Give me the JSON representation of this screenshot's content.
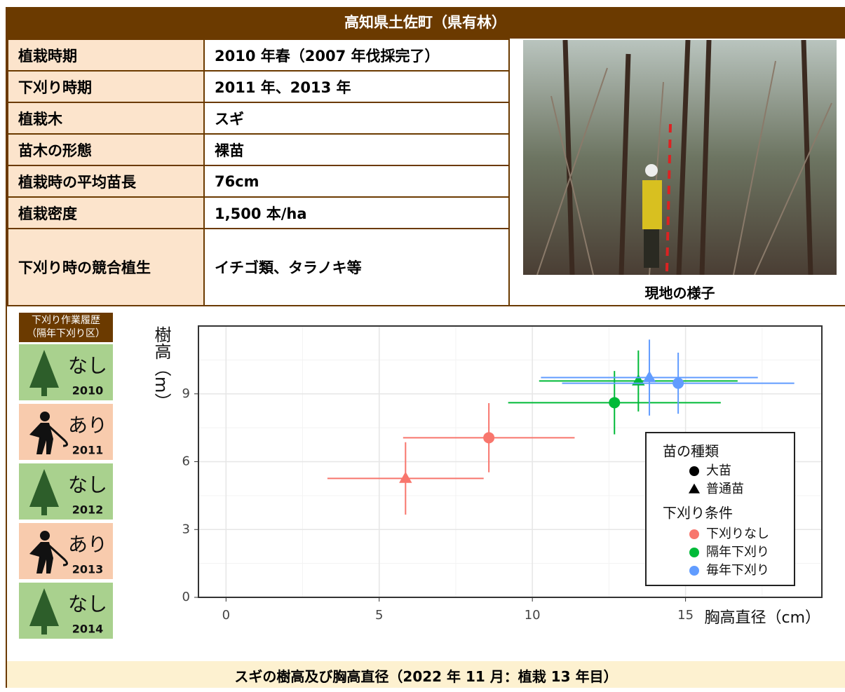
{
  "header": {
    "title": "高知県土佐町（県有林）"
  },
  "table": {
    "rows": [
      [
        "植栽時期",
        "2010 年春（2007 年伐採完了）"
      ],
      [
        "下刈り時期",
        "2011 年、2013 年"
      ],
      [
        "植栽木",
        "スギ"
      ],
      [
        "苗木の形態",
        "裸苗"
      ],
      [
        "植栽時の平均苗長",
        "76cm"
      ],
      [
        "植栽密度",
        "1,500 本/ha"
      ],
      [
        "下刈り時の競合植生",
        "イチゴ類、タラノキ等"
      ]
    ]
  },
  "photo": {
    "caption": "現地の様子"
  },
  "history": {
    "title": [
      "下刈り作業履歴",
      "（隔年下刈り区）"
    ],
    "items": [
      {
        "label": "なし",
        "year": "2010",
        "icon": "tree"
      },
      {
        "label": "あり",
        "year": "2011",
        "icon": "worker"
      },
      {
        "label": "なし",
        "year": "2012",
        "icon": "tree"
      },
      {
        "label": "あり",
        "year": "2013",
        "icon": "worker"
      },
      {
        "label": "なし",
        "year": "2014",
        "icon": "tree"
      }
    ]
  },
  "chart_data": {
    "type": "scatter",
    "x_label": "胸高直径（cm）",
    "y_label": "樹高（m）",
    "xlim": [
      -0.9,
      19.45
    ],
    "ylim": [
      0,
      12
    ],
    "xticks": [
      0,
      5,
      10,
      15
    ],
    "yticks": [
      0,
      3,
      6,
      9
    ],
    "grid": true,
    "legend_position": "bottom-right",
    "marker_title": "苗の種類",
    "markers": [
      "大苗",
      "普通苗"
    ],
    "marker_shapes": [
      "circle",
      "triangle"
    ],
    "color_title": "下刈り条件",
    "series": [
      {
        "name": "下刈りなし",
        "color": "#f8766d",
        "x": [
          8.58,
          5.86
        ],
        "values": [
          7.06,
          5.26
        ],
        "x_err": [
          2.8,
          2.55
        ],
        "y_err": [
          1.53,
          1.6
        ]
      },
      {
        "name": "隔年下刈り",
        "color": "#00ba38",
        "x": [
          12.68,
          13.46
        ],
        "values": [
          8.61,
          9.57
        ],
        "x_err": [
          3.47,
          3.24
        ],
        "y_err": [
          1.4,
          1.35
        ]
      },
      {
        "name": "毎年下刈り",
        "color": "#619cff",
        "x": [
          14.76,
          13.82
        ],
        "values": [
          9.47,
          9.72
        ],
        "x_err": [
          3.79,
          3.54
        ],
        "y_err": [
          1.35,
          1.68
        ]
      }
    ]
  },
  "caption": "スギの樹高及び胸高直径（2022 年 11 月：植栽 13 年目）"
}
